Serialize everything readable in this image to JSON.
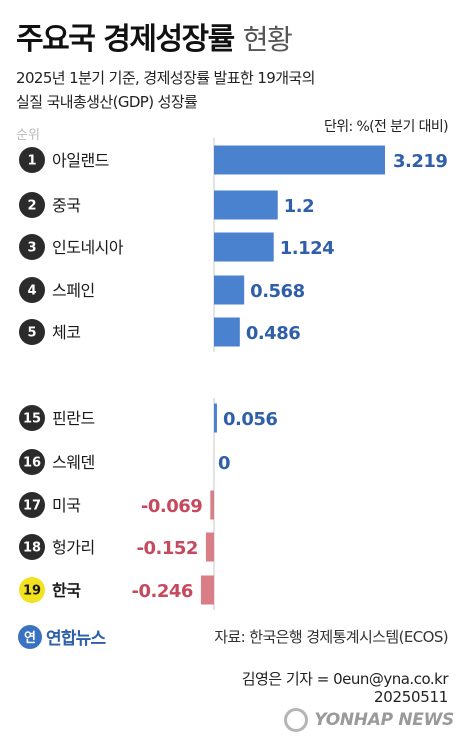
{
  "header": {
    "title_main": "주요국 경제성장률",
    "title_light": "현황",
    "subtitle_line1": "2025년 1분기 기준, 경제성장률 발표한 19개국의",
    "subtitle_line2": "실질 국내총생산(GDP) 성장률",
    "unit": "단위: %(전 분기 대비)",
    "rank_header": "순위"
  },
  "chart_data": {
    "type": "bar",
    "orientation": "horizontal",
    "categories": [
      "아일랜드",
      "중국",
      "인도네시아",
      "스페인",
      "체코",
      "핀란드",
      "스웨덴",
      "미국",
      "헝가리",
      "한국"
    ],
    "ranks": [
      "1",
      "2",
      "3",
      "4",
      "5",
      "15",
      "16",
      "17",
      "18",
      "19"
    ],
    "values": [
      3.219,
      1.2,
      1.124,
      0.568,
      0.486,
      0.056,
      0,
      -0.069,
      -0.152,
      -0.246
    ],
    "value_labels": [
      "3.219",
      "1.2",
      "1.124",
      "0.568",
      "0.486",
      "0.056",
      "0",
      "-0.069",
      "-0.152",
      "-0.246"
    ],
    "highlight": "한국",
    "colors": {
      "positive": "#4a82cf",
      "negative": "#d97d86",
      "positive_label": "#2f5fa8",
      "negative_label": "#c64a5e",
      "rank_badge": "#2b2b2b",
      "highlight_badge": "#f2e21f",
      "axis": "#c8c8c8"
    }
  },
  "footer": {
    "logo_mark": "연",
    "logo_text": "연합뉴스",
    "source": "자료: 한국은행 경제통계시스템(ECOS)",
    "reporter": "김영은 기자 = 0eun@yna.co.kr",
    "date": "20250511",
    "watermark": "YONHAP NEWS"
  }
}
